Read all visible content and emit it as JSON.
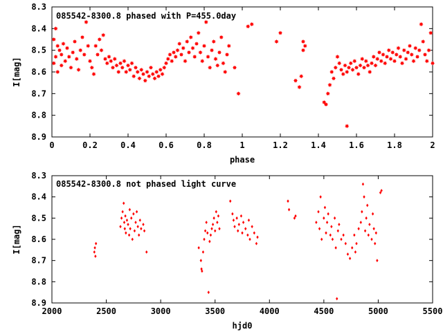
{
  "chart_data": [
    {
      "type": "scatter",
      "title": "085542-8300.8 phased with P=455.0day",
      "xlabel": "phase",
      "ylabel": "I[mag]",
      "xlim": [
        0,
        2
      ],
      "ylim": [
        8.3,
        8.9
      ],
      "y_inverted": true,
      "xticks": [
        "0",
        "0.2",
        "0.4",
        "0.6",
        "0.8",
        "1",
        "1.2",
        "1.4",
        "1.6",
        "1.8",
        "2"
      ],
      "yticks": [
        "8.3",
        "8.4",
        "8.5",
        "8.6",
        "8.7",
        "8.8",
        "8.9"
      ],
      "color": "#ff0000",
      "marker": "filled-star",
      "grid": false,
      "legend": "none",
      "points": [
        [
          0.01,
          8.56
        ],
        [
          0.01,
          8.45
        ],
        [
          0.02,
          8.4
        ],
        [
          0.02,
          8.53
        ],
        [
          0.03,
          8.6
        ],
        [
          0.03,
          8.48
        ],
        [
          0.04,
          8.5
        ],
        [
          0.05,
          8.57
        ],
        [
          0.05,
          8.52
        ],
        [
          0.06,
          8.47
        ],
        [
          0.07,
          8.55
        ],
        [
          0.08,
          8.49
        ],
        [
          0.09,
          8.53
        ],
        [
          0.1,
          8.58
        ],
        [
          0.11,
          8.51
        ],
        [
          0.12,
          8.46
        ],
        [
          0.13,
          8.54
        ],
        [
          0.14,
          8.59
        ],
        [
          0.15,
          8.5
        ],
        [
          0.16,
          8.44
        ],
        [
          0.17,
          8.52
        ],
        [
          0.18,
          8.37
        ],
        [
          0.19,
          8.48
        ],
        [
          0.2,
          8.55
        ],
        [
          0.21,
          8.58
        ],
        [
          0.22,
          8.61
        ],
        [
          0.23,
          8.48
        ],
        [
          0.24,
          8.52
        ],
        [
          0.25,
          8.45
        ],
        [
          0.26,
          8.5
        ],
        [
          0.27,
          8.43
        ],
        [
          0.28,
          8.54
        ],
        [
          0.29,
          8.56
        ],
        [
          0.3,
          8.53
        ],
        [
          0.31,
          8.55
        ],
        [
          0.32,
          8.58
        ],
        [
          0.33,
          8.54
        ],
        [
          0.34,
          8.57
        ],
        [
          0.35,
          8.6
        ],
        [
          0.36,
          8.56
        ],
        [
          0.37,
          8.58
        ],
        [
          0.38,
          8.55
        ],
        [
          0.39,
          8.6
        ],
        [
          0.4,
          8.57
        ],
        [
          0.41,
          8.59
        ],
        [
          0.42,
          8.56
        ],
        [
          0.43,
          8.62
        ],
        [
          0.44,
          8.58
        ],
        [
          0.45,
          8.6
        ],
        [
          0.46,
          8.63
        ],
        [
          0.47,
          8.59
        ],
        [
          0.48,
          8.61
        ],
        [
          0.49,
          8.64
        ],
        [
          0.5,
          8.6
        ],
        [
          0.51,
          8.62
        ],
        [
          0.52,
          8.58
        ],
        [
          0.53,
          8.61
        ],
        [
          0.54,
          8.63
        ],
        [
          0.55,
          8.6
        ],
        [
          0.56,
          8.62
        ],
        [
          0.57,
          8.59
        ],
        [
          0.58,
          8.61
        ],
        [
          0.59,
          8.58
        ],
        [
          0.6,
          8.56
        ],
        [
          0.61,
          8.54
        ],
        [
          0.62,
          8.52
        ],
        [
          0.63,
          8.55
        ],
        [
          0.64,
          8.51
        ],
        [
          0.65,
          8.53
        ],
        [
          0.66,
          8.5
        ],
        [
          0.67,
          8.47
        ],
        [
          0.68,
          8.52
        ],
        [
          0.69,
          8.49
        ],
        [
          0.7,
          8.55
        ],
        [
          0.71,
          8.46
        ],
        [
          0.72,
          8.51
        ],
        [
          0.73,
          8.44
        ],
        [
          0.74,
          8.49
        ],
        [
          0.75,
          8.53
        ],
        [
          0.76,
          8.47
        ],
        [
          0.77,
          8.42
        ],
        [
          0.78,
          8.51
        ],
        [
          0.79,
          8.55
        ],
        [
          0.8,
          8.48
        ],
        [
          0.81,
          8.37
        ],
        [
          0.82,
          8.53
        ],
        [
          0.83,
          8.58
        ],
        [
          0.84,
          8.5
        ],
        [
          0.85,
          8.46
        ],
        [
          0.86,
          8.54
        ],
        [
          0.87,
          8.57
        ],
        [
          0.88,
          8.51
        ],
        [
          0.89,
          8.44
        ],
        [
          0.9,
          8.56
        ],
        [
          0.91,
          8.6
        ],
        [
          0.92,
          8.52
        ],
        [
          0.93,
          8.48
        ],
        [
          0.96,
          8.58
        ],
        [
          0.98,
          8.7
        ],
        [
          1.03,
          8.39
        ],
        [
          1.05,
          8.38
        ],
        [
          1.18,
          8.46
        ],
        [
          1.2,
          8.42
        ],
        [
          1.28,
          8.64
        ],
        [
          1.3,
          8.67
        ],
        [
          1.31,
          8.62
        ],
        [
          1.32,
          8.5
        ],
        [
          1.32,
          8.46
        ],
        [
          1.33,
          8.48
        ],
        [
          1.43,
          8.74
        ],
        [
          1.44,
          8.75
        ],
        [
          1.45,
          8.7
        ],
        [
          1.46,
          8.66
        ],
        [
          1.47,
          8.6
        ],
        [
          1.48,
          8.63
        ],
        [
          1.49,
          8.58
        ],
        [
          1.5,
          8.53
        ],
        [
          1.51,
          8.56
        ],
        [
          1.52,
          8.59
        ],
        [
          1.53,
          8.61
        ],
        [
          1.54,
          8.57
        ],
        [
          1.55,
          8.6
        ],
        [
          1.55,
          8.85
        ],
        [
          1.56,
          8.58
        ],
        [
          1.57,
          8.56
        ],
        [
          1.58,
          8.59
        ],
        [
          1.59,
          8.55
        ],
        [
          1.6,
          8.58
        ],
        [
          1.61,
          8.61
        ],
        [
          1.62,
          8.57
        ],
        [
          1.63,
          8.54
        ],
        [
          1.64,
          8.58
        ],
        [
          1.65,
          8.55
        ],
        [
          1.66,
          8.57
        ],
        [
          1.67,
          8.6
        ],
        [
          1.68,
          8.56
        ],
        [
          1.69,
          8.53
        ],
        [
          1.7,
          8.57
        ],
        [
          1.71,
          8.54
        ],
        [
          1.72,
          8.51
        ],
        [
          1.73,
          8.55
        ],
        [
          1.74,
          8.52
        ],
        [
          1.75,
          8.56
        ],
        [
          1.76,
          8.53
        ],
        [
          1.77,
          8.5
        ],
        [
          1.78,
          8.54
        ],
        [
          1.79,
          8.51
        ],
        [
          1.8,
          8.55
        ],
        [
          1.81,
          8.52
        ],
        [
          1.82,
          8.49
        ],
        [
          1.83,
          8.53
        ],
        [
          1.84,
          8.56
        ],
        [
          1.85,
          8.5
        ],
        [
          1.86,
          8.54
        ],
        [
          1.87,
          8.51
        ],
        [
          1.88,
          8.48
        ],
        [
          1.89,
          8.52
        ],
        [
          1.9,
          8.55
        ],
        [
          1.91,
          8.49
        ],
        [
          1.92,
          8.53
        ],
        [
          1.93,
          8.5
        ],
        [
          1.94,
          8.38
        ],
        [
          1.95,
          8.46
        ],
        [
          1.96,
          8.52
        ],
        [
          1.97,
          8.55
        ],
        [
          1.98,
          8.5
        ],
        [
          1.99,
          8.42
        ],
        [
          2.0,
          8.56
        ]
      ]
    },
    {
      "type": "scatter",
      "title": "085542-8300.8 not phased light curve",
      "xlabel": "hjd0",
      "ylabel": "I[mag]",
      "xlim": [
        2000,
        5500
      ],
      "ylim": [
        8.3,
        8.9
      ],
      "y_inverted": true,
      "xticks": [
        "2000",
        "2500",
        "3000",
        "3500",
        "4000",
        "4500",
        "5000",
        "5500"
      ],
      "yticks": [
        "8.3",
        "8.4",
        "8.5",
        "8.6",
        "8.7",
        "8.8",
        "8.9"
      ],
      "color": "#ff0000",
      "marker": "small-diamond",
      "grid": false,
      "legend": "none",
      "points": [
        [
          2390,
          8.66
        ],
        [
          2395,
          8.64
        ],
        [
          2400,
          8.68
        ],
        [
          2405,
          8.62
        ],
        [
          2630,
          8.54
        ],
        [
          2640,
          8.5
        ],
        [
          2650,
          8.47
        ],
        [
          2660,
          8.43
        ],
        [
          2665,
          8.52
        ],
        [
          2670,
          8.55
        ],
        [
          2675,
          8.49
        ],
        [
          2680,
          8.57
        ],
        [
          2690,
          8.51
        ],
        [
          2700,
          8.53
        ],
        [
          2710,
          8.58
        ],
        [
          2715,
          8.46
        ],
        [
          2720,
          8.55
        ],
        [
          2730,
          8.5
        ],
        [
          2740,
          8.6
        ],
        [
          2750,
          8.48
        ],
        [
          2760,
          8.56
        ],
        [
          2770,
          8.52
        ],
        [
          2780,
          8.47
        ],
        [
          2790,
          8.54
        ],
        [
          2800,
          8.58
        ],
        [
          2810,
          8.51
        ],
        [
          2820,
          8.55
        ],
        [
          2840,
          8.53
        ],
        [
          2850,
          8.56
        ],
        [
          2870,
          8.66
        ],
        [
          3350,
          8.64
        ],
        [
          3370,
          8.7
        ],
        [
          3375,
          8.74
        ],
        [
          3380,
          8.75
        ],
        [
          3390,
          8.66
        ],
        [
          3400,
          8.6
        ],
        [
          3410,
          8.56
        ],
        [
          3420,
          8.52
        ],
        [
          3430,
          8.57
        ],
        [
          3440,
          8.85
        ],
        [
          3450,
          8.61
        ],
        [
          3460,
          8.58
        ],
        [
          3470,
          8.55
        ],
        [
          3480,
          8.53
        ],
        [
          3490,
          8.5
        ],
        [
          3500,
          8.56
        ],
        [
          3510,
          8.47
        ],
        [
          3520,
          8.52
        ],
        [
          3530,
          8.49
        ],
        [
          3540,
          8.55
        ],
        [
          3640,
          8.42
        ],
        [
          3660,
          8.48
        ],
        [
          3670,
          8.51
        ],
        [
          3680,
          8.54
        ],
        [
          3700,
          8.5
        ],
        [
          3710,
          8.56
        ],
        [
          3720,
          8.53
        ],
        [
          3740,
          8.49
        ],
        [
          3750,
          8.57
        ],
        [
          3760,
          8.52
        ],
        [
          3780,
          8.55
        ],
        [
          3800,
          8.58
        ],
        [
          3810,
          8.51
        ],
        [
          3820,
          8.6
        ],
        [
          3840,
          8.54
        ],
        [
          3860,
          8.57
        ],
        [
          3880,
          8.62
        ],
        [
          3890,
          8.59
        ],
        [
          4170,
          8.42
        ],
        [
          4180,
          8.46
        ],
        [
          4230,
          8.5
        ],
        [
          4240,
          8.49
        ],
        [
          4430,
          8.52
        ],
        [
          4450,
          8.47
        ],
        [
          4460,
          8.55
        ],
        [
          4470,
          8.4
        ],
        [
          4480,
          8.6
        ],
        [
          4500,
          8.5
        ],
        [
          4510,
          8.45
        ],
        [
          4520,
          8.57
        ],
        [
          4530,
          8.52
        ],
        [
          4540,
          8.48
        ],
        [
          4560,
          8.58
        ],
        [
          4570,
          8.54
        ],
        [
          4580,
          8.6
        ],
        [
          4600,
          8.5
        ],
        [
          4610,
          8.64
        ],
        [
          4620,
          8.88
        ],
        [
          4630,
          8.56
        ],
        [
          4640,
          8.53
        ],
        [
          4660,
          8.6
        ],
        [
          4680,
          8.58
        ],
        [
          4700,
          8.62
        ],
        [
          4720,
          8.67
        ],
        [
          4740,
          8.69
        ],
        [
          4760,
          8.64
        ],
        [
          4780,
          8.58
        ],
        [
          4790,
          8.66
        ],
        [
          4800,
          8.62
        ],
        [
          4820,
          8.55
        ],
        [
          4840,
          8.52
        ],
        [
          4850,
          8.47
        ],
        [
          4860,
          8.34
        ],
        [
          4870,
          8.4
        ],
        [
          4880,
          8.56
        ],
        [
          4890,
          8.5
        ],
        [
          4900,
          8.44
        ],
        [
          4910,
          8.58
        ],
        [
          4920,
          8.53
        ],
        [
          4940,
          8.6
        ],
        [
          4950,
          8.48
        ],
        [
          4960,
          8.55
        ],
        [
          4970,
          8.62
        ],
        [
          4980,
          8.57
        ],
        [
          4990,
          8.7
        ],
        [
          5020,
          8.38
        ],
        [
          5030,
          8.37
        ]
      ]
    }
  ]
}
